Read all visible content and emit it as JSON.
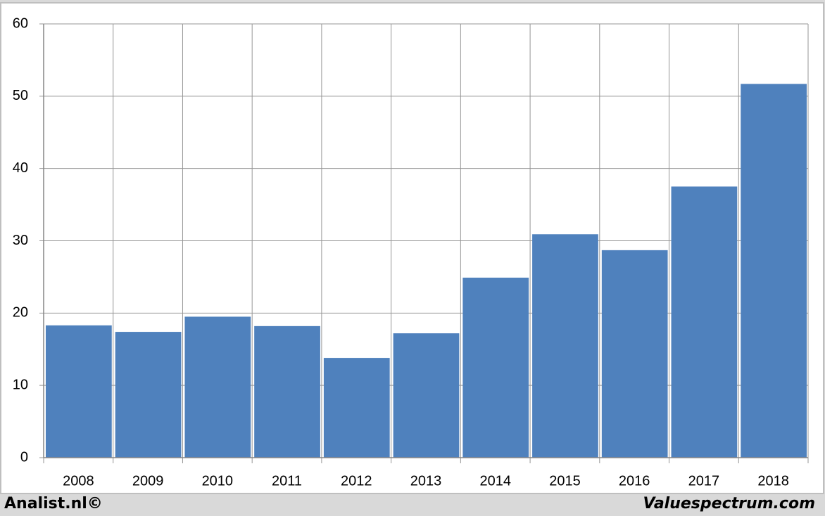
{
  "chart_data": {
    "type": "bar",
    "categories": [
      "2008",
      "2009",
      "2010",
      "2011",
      "2012",
      "2013",
      "2014",
      "2015",
      "2016",
      "2017",
      "2018"
    ],
    "values": [
      18.3,
      17.4,
      19.5,
      18.2,
      13.8,
      17.2,
      24.9,
      30.9,
      28.7,
      37.5,
      51.7
    ],
    "color": "#4f81bd",
    "ylim": [
      0,
      60
    ],
    "yticks": [
      0,
      10,
      20,
      30,
      40,
      50,
      60
    ],
    "grid": true,
    "footer_left": "Analist.nl©",
    "footer_right": "Valuespectrum.com"
  }
}
